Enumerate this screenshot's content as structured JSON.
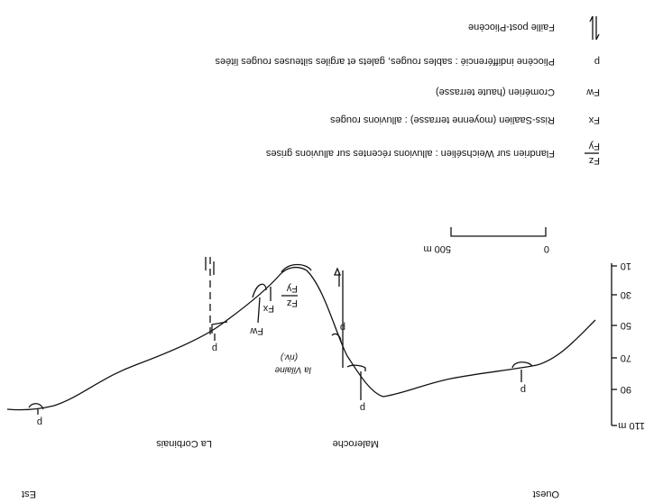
{
  "directions": {
    "west": "Ouest",
    "east": "Est"
  },
  "places": {
    "maleroche": "Maleroche",
    "corbinais": "La Corbinais",
    "river": "la Vilaine",
    "river_note": "(riv.)"
  },
  "elevation_axis": [
    "10",
    "30",
    "50",
    "70",
    "90",
    "110 m"
  ],
  "scale_bar": [
    "0",
    "500 m"
  ],
  "profile_labels": {
    "p": "p",
    "fw": "Fw",
    "fx": "Fx",
    "fz": "Fz",
    "fy": "Fy"
  },
  "legend": [
    {
      "symbol": "Fz",
      "symbol2": "Fy",
      "text": "Flandrien sur Weichsélien : alluvions récentes sur alluvions grises"
    },
    {
      "symbol": "Fx",
      "text": "Riss-Saalien (moyenne terrasse) : alluvions rouges"
    },
    {
      "symbol": "Fw",
      "text": "Cromérien (haute terrasse)"
    },
    {
      "symbol": "p",
      "text": "Pliocène indifférencié : sables rouges, galets et argiles silteuses rouges litées"
    },
    {
      "text": "Faille post-Pliocène"
    }
  ]
}
